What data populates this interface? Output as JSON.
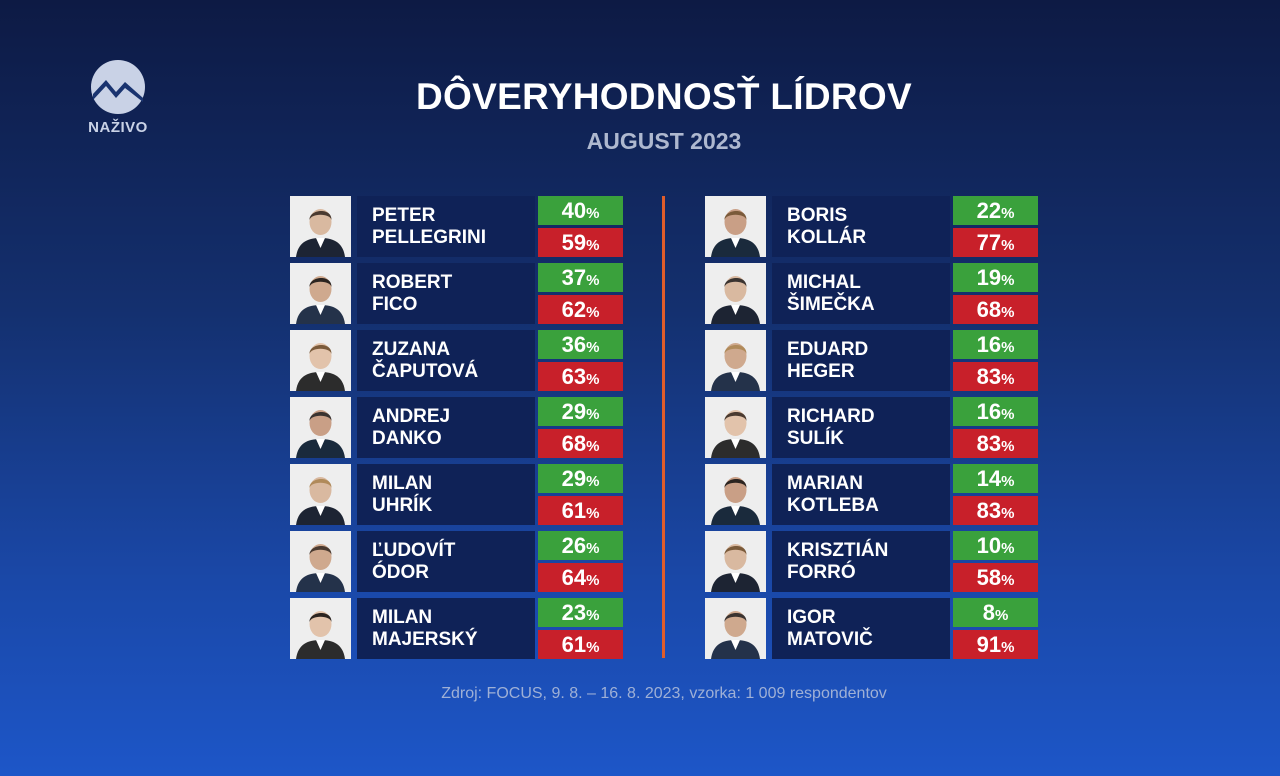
{
  "logo": {
    "text": "NAŽIVO"
  },
  "title": "DÔVERYHODNOSŤ LÍDROV",
  "subtitle": "AUGUST 2023",
  "colors": {
    "trust": "#3aa13c",
    "distrust": "#c8202a",
    "name_bg": "#0f2257",
    "divider": "#e05d2a"
  },
  "chart_data": {
    "type": "table",
    "title": "DÔVERYHODNOSŤ LÍDROV",
    "subtitle": "AUGUST 2023",
    "columns": [
      "trust",
      "distrust"
    ],
    "unit": "%",
    "rows": [
      {
        "first": "PETER",
        "last": "PELLEGRINI",
        "trust": 40,
        "distrust": 59
      },
      {
        "first": "ROBERT",
        "last": "FICO",
        "trust": 37,
        "distrust": 62
      },
      {
        "first": "ZUZANA",
        "last": "ČAPUTOVÁ",
        "trust": 36,
        "distrust": 63
      },
      {
        "first": "ANDREJ",
        "last": "DANKO",
        "trust": 29,
        "distrust": 68
      },
      {
        "first": "MILAN",
        "last": "UHRÍK",
        "trust": 29,
        "distrust": 61
      },
      {
        "first": "ĽUDOVÍT",
        "last": "ÓDOR",
        "trust": 26,
        "distrust": 64
      },
      {
        "first": "MILAN",
        "last": "MAJERSKÝ",
        "trust": 23,
        "distrust": 61
      },
      {
        "first": "BORIS",
        "last": "KOLLÁR",
        "trust": 22,
        "distrust": 77
      },
      {
        "first": "MICHAL",
        "last": "ŠIMEČKA",
        "trust": 19,
        "distrust": 68
      },
      {
        "first": "EDUARD",
        "last": "HEGER",
        "trust": 16,
        "distrust": 83
      },
      {
        "first": "RICHARD",
        "last": "SULÍK",
        "trust": 16,
        "distrust": 83
      },
      {
        "first": "MARIAN",
        "last": "KOTLEBA",
        "trust": 14,
        "distrust": 83
      },
      {
        "first": "KRISZTIÁN",
        "last": "FORRÓ",
        "trust": 10,
        "distrust": 58
      },
      {
        "first": "IGOR",
        "last": "MATOVIČ",
        "trust": 8,
        "distrust": 91
      }
    ]
  },
  "source": "Zdroj: FOCUS, 9. 8. – 16. 8. 2023, vzorka: 1 009 respondentov"
}
